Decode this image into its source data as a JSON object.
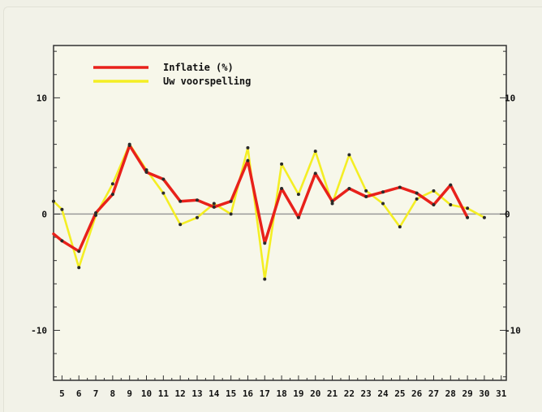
{
  "chart_data": {
    "type": "line",
    "title": "",
    "xlabel": "",
    "ylabel": "",
    "x_ticks": [
      "5",
      "6",
      "7",
      "8",
      "9",
      "10",
      "11",
      "12",
      "13",
      "14",
      "15",
      "16",
      "17",
      "18",
      "19",
      "20",
      "21",
      "22",
      "23",
      "24",
      "25",
      "26",
      "27",
      "28",
      "29",
      "30",
      "31"
    ],
    "y_ticks": [
      10,
      0,
      -10
    ],
    "xlim": [
      4.5,
      31.3
    ],
    "ylim": [
      -14.3,
      14.5
    ],
    "grid": false,
    "legend_position": "top-left",
    "zero_line": true,
    "series": [
      {
        "name": "Inflatie (%)",
        "color": "#e8211b",
        "x": [
          4.5,
          5,
          6,
          7,
          8,
          9,
          10,
          11,
          12,
          13,
          14,
          15,
          16,
          17,
          18,
          19,
          20,
          21,
          22,
          23,
          24,
          25,
          26,
          27,
          28,
          29
        ],
        "y": [
          -1.7,
          -2.3,
          -3.2,
          0.1,
          1.7,
          5.9,
          3.6,
          3.0,
          1.1,
          1.2,
          0.6,
          1.1,
          4.6,
          -2.5,
          2.2,
          -0.3,
          3.5,
          1.1,
          2.2,
          1.5,
          1.9,
          2.3,
          1.8,
          0.8,
          2.5,
          -0.3
        ]
      },
      {
        "name": "Uw voorspelling",
        "color": "#f4ee24",
        "x": [
          4.5,
          5,
          6,
          7,
          8,
          9,
          10,
          11,
          12,
          13,
          14,
          15,
          16,
          17,
          18,
          19,
          20,
          21,
          22,
          23,
          24,
          25,
          26,
          27,
          28,
          29,
          30
        ],
        "y": [
          1.1,
          0.4,
          -4.6,
          -0.1,
          2.6,
          6.0,
          3.8,
          1.8,
          -0.9,
          -0.3,
          0.9,
          0.0,
          5.7,
          -5.6,
          4.3,
          1.7,
          5.4,
          0.9,
          5.1,
          2.0,
          0.9,
          -1.1,
          1.3,
          2.0,
          0.8,
          0.5,
          -0.3
        ]
      }
    ]
  }
}
